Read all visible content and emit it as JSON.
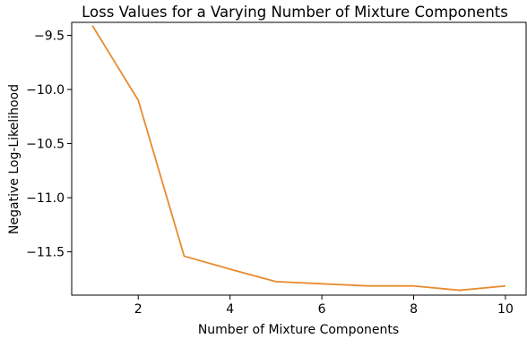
{
  "chart_data": {
    "type": "line",
    "title": "Loss Values for a Varying Number of Mixture Components",
    "xlabel": "Number of Mixture Components",
    "ylabel": "Negative Log-Likelihood",
    "x": [
      1,
      2,
      3,
      4,
      5,
      6,
      7,
      8,
      9,
      10
    ],
    "series": [
      {
        "values": [
          -9.41,
          -10.1,
          -11.54,
          -11.66,
          -11.775,
          -11.795,
          -11.815,
          -11.815,
          -11.855,
          -11.815
        ],
        "color": "#E88B2E"
      }
    ],
    "xlim": [
      0.55,
      10.45
    ],
    "ylim": [
      -11.9,
      -9.38
    ],
    "xticks": [
      2,
      4,
      6,
      8,
      10
    ],
    "yticks": [
      -9.5,
      -10.0,
      -10.5,
      -11.0,
      -11.5
    ],
    "xtick_labels": [
      "2",
      "4",
      "6",
      "8",
      "10"
    ],
    "ytick_labels": [
      "−9.5",
      "−10.0",
      "−10.5",
      "−11.0",
      "−11.5"
    ],
    "grid": false,
    "legend": "none"
  }
}
